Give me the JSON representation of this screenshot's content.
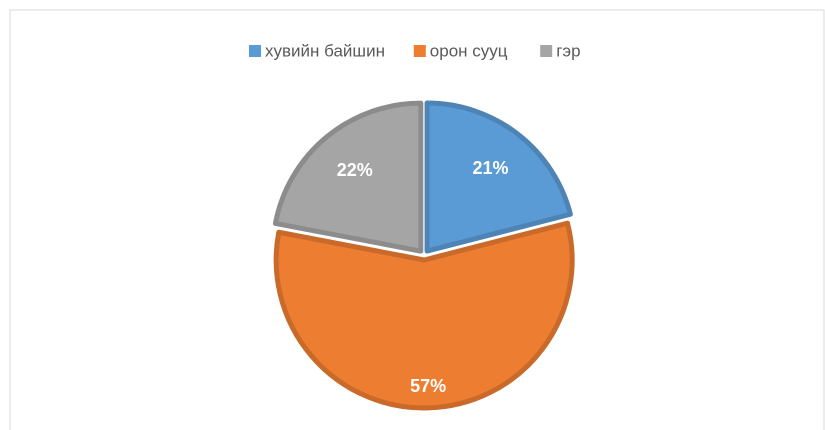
{
  "chart_data": {
    "type": "pie",
    "categories": [
      "хувийн байшин",
      "орон сууц",
      "гэр"
    ],
    "values": [
      21,
      57,
      22
    ],
    "value_labels": [
      "21%",
      "57%",
      "22%"
    ],
    "colors": [
      "#5b9bd5",
      "#ed7d31",
      "#a5a5a5"
    ],
    "legend": "top"
  }
}
